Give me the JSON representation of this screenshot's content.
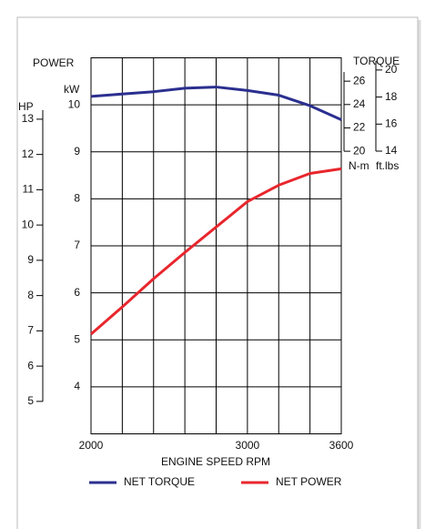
{
  "chart_data": {
    "type": "line",
    "power_label": "POWER",
    "kw_label": "kW",
    "hp_label": "HP",
    "torque_label": "TORQUE",
    "nm_label": "N-m",
    "ftlb_label": "ft.lbs",
    "xlabel": "ENGINE SPEED RPM",
    "x": [
      2000,
      2200,
      2400,
      2600,
      2800,
      3000,
      3200,
      3400,
      3600
    ],
    "xlim": [
      2000,
      3600
    ],
    "xticks": [
      2000,
      3000,
      3600
    ],
    "x_grid_step": 200,
    "ylim": [
      3,
      11
    ],
    "yticks": [
      4,
      5,
      6,
      7,
      8,
      9,
      10
    ],
    "y2lim": [
      -4.2,
      28
    ],
    "y2ticks": [
      20,
      22,
      24,
      26
    ],
    "hplim": [
      4.08,
      14.74
    ],
    "hpticks": [
      5,
      6,
      7,
      8,
      9,
      10,
      11,
      12,
      13
    ],
    "ftlblim": [
      -6.9,
      20.9
    ],
    "ftlbticks": [
      14,
      16,
      18,
      20
    ],
    "grid": true,
    "series": [
      {
        "name": "NET TORQUE",
        "color": "#2b2f8f",
        "axis": "y2",
        "values": [
          24.7,
          24.9,
          25.1,
          25.4,
          25.5,
          25.2,
          24.8,
          23.9,
          22.7
        ]
      },
      {
        "name": "NET POWER",
        "color": "#e8262d",
        "values": [
          5.12,
          5.7,
          6.3,
          6.86,
          7.4,
          7.94,
          8.29,
          8.54,
          8.64
        ]
      }
    ]
  }
}
